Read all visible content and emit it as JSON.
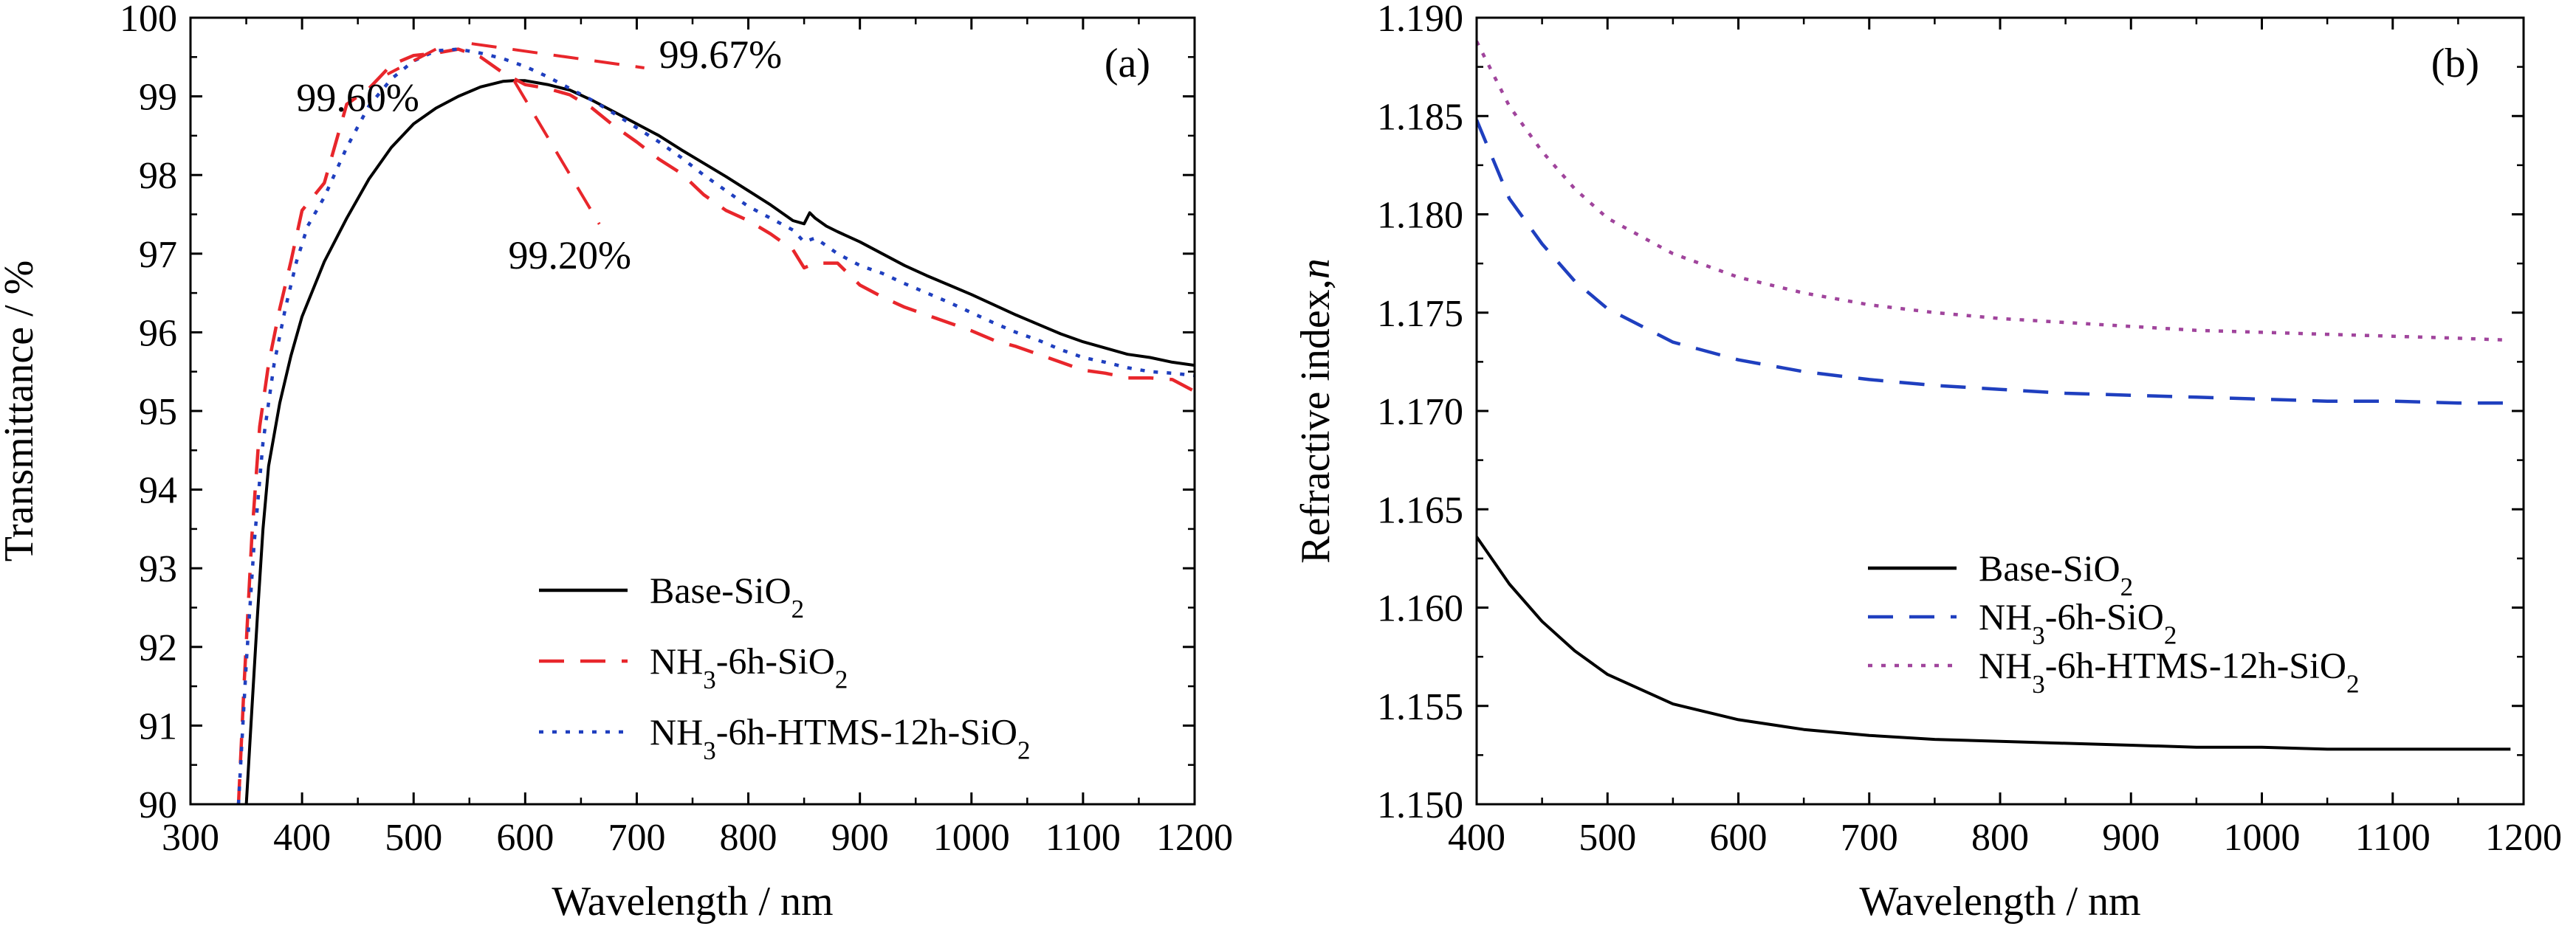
{
  "chart_data": [
    {
      "type": "line",
      "panel_label": "(a)",
      "xlabel": "Wavelength / nm",
      "ylabel": "Transmittance / %",
      "xlim": [
        300,
        1200
      ],
      "ylim": [
        90,
        100
      ],
      "x_ticks": [
        300,
        400,
        500,
        600,
        700,
        800,
        900,
        1000,
        1100,
        1200
      ],
      "y_ticks": [
        90,
        91,
        92,
        93,
        94,
        95,
        96,
        97,
        98,
        99,
        100
      ],
      "legend_position": "bottom-right",
      "series": [
        {
          "name": "Base-SiO2",
          "name_main": "Base-SiO",
          "name_sub": "2",
          "name_tail": "",
          "color": "#000000",
          "style": "solid",
          "points": [
            [
              350,
              90
            ],
            [
              355,
              91.2
            ],
            [
              360,
              92.4
            ],
            [
              365,
              93.5
            ],
            [
              370,
              94.3
            ],
            [
              380,
              95.1
            ],
            [
              390,
              95.7
            ],
            [
              400,
              96.2
            ],
            [
              420,
              96.9
            ],
            [
              440,
              97.45
            ],
            [
              460,
              97.95
            ],
            [
              480,
              98.35
            ],
            [
              500,
              98.65
            ],
            [
              520,
              98.85
            ],
            [
              540,
              99.0
            ],
            [
              560,
              99.12
            ],
            [
              580,
              99.19
            ],
            [
              590,
              99.2
            ],
            [
              600,
              99.2
            ],
            [
              620,
              99.15
            ],
            [
              640,
              99.08
            ],
            [
              660,
              98.95
            ],
            [
              680,
              98.8
            ],
            [
              700,
              98.65
            ],
            [
              720,
              98.5
            ],
            [
              740,
              98.32
            ],
            [
              760,
              98.15
            ],
            [
              780,
              97.98
            ],
            [
              800,
              97.8
            ],
            [
              820,
              97.62
            ],
            [
              840,
              97.42
            ],
            [
              850,
              97.38
            ],
            [
              855,
              97.52
            ],
            [
              860,
              97.45
            ],
            [
              870,
              97.35
            ],
            [
              880,
              97.28
            ],
            [
              900,
              97.15
            ],
            [
              920,
              97.0
            ],
            [
              940,
              96.85
            ],
            [
              960,
              96.72
            ],
            [
              980,
              96.6
            ],
            [
              1000,
              96.48
            ],
            [
              1020,
              96.35
            ],
            [
              1040,
              96.22
            ],
            [
              1060,
              96.1
            ],
            [
              1080,
              95.98
            ],
            [
              1100,
              95.88
            ],
            [
              1120,
              95.8
            ],
            [
              1140,
              95.72
            ],
            [
              1160,
              95.68
            ],
            [
              1180,
              95.62
            ],
            [
              1200,
              95.58
            ]
          ]
        },
        {
          "name": "NH3-6h-SiO2",
          "name_main": "NH",
          "name_sub": "3",
          "name_tail": "-6h-SiO",
          "name_sub2": "2",
          "color": "#e8262b",
          "style": "dashed",
          "points": [
            [
              343,
              90
            ],
            [
              348,
              91.5
            ],
            [
              355,
              93.4
            ],
            [
              362,
              94.8
            ],
            [
              370,
              95.6
            ],
            [
              380,
              96.3
            ],
            [
              390,
              96.9
            ],
            [
              400,
              97.55
            ],
            [
              420,
              97.9
            ],
            [
              440,
              98.9
            ],
            [
              460,
              99.1
            ],
            [
              480,
              99.4
            ],
            [
              500,
              99.52
            ],
            [
              520,
              99.55
            ],
            [
              540,
              99.6
            ],
            [
              560,
              99.5
            ],
            [
              580,
              99.3
            ],
            [
              600,
              99.15
            ],
            [
              620,
              99.1
            ],
            [
              640,
              99.02
            ],
            [
              660,
              98.85
            ],
            [
              680,
              98.62
            ],
            [
              700,
              98.42
            ],
            [
              720,
              98.2
            ],
            [
              740,
              98.02
            ],
            [
              760,
              97.75
            ],
            [
              780,
              97.55
            ],
            [
              800,
              97.42
            ],
            [
              820,
              97.25
            ],
            [
              840,
              97.05
            ],
            [
              850,
              96.82
            ],
            [
              860,
              96.88
            ],
            [
              880,
              96.88
            ],
            [
              900,
              96.6
            ],
            [
              920,
              96.45
            ],
            [
              940,
              96.32
            ],
            [
              960,
              96.22
            ],
            [
              980,
              96.12
            ],
            [
              1000,
              96.02
            ],
            [
              1020,
              95.9
            ],
            [
              1040,
              95.82
            ],
            [
              1060,
              95.72
            ],
            [
              1080,
              95.62
            ],
            [
              1100,
              95.52
            ],
            [
              1120,
              95.48
            ],
            [
              1140,
              95.42
            ],
            [
              1160,
              95.42
            ],
            [
              1180,
              95.4
            ],
            [
              1200,
              95.25
            ]
          ]
        },
        {
          "name": "NH3-6h-HTMS-12h-SiO2",
          "name_main": "NH",
          "name_sub": "3",
          "name_tail": "-6h-HTMS-12h-SiO",
          "name_sub2": "2",
          "color": "#1f3fbf",
          "style": "dotted",
          "points": [
            [
              343,
              90
            ],
            [
              350,
              91.8
            ],
            [
              357,
              93.3
            ],
            [
              365,
              94.6
            ],
            [
              375,
              95.6
            ],
            [
              385,
              96.3
            ],
            [
              395,
              96.9
            ],
            [
              405,
              97.35
            ],
            [
              420,
              97.72
            ],
            [
              440,
              98.35
            ],
            [
              460,
              98.88
            ],
            [
              480,
              99.22
            ],
            [
              500,
              99.45
            ],
            [
              520,
              99.58
            ],
            [
              540,
              99.6
            ],
            [
              560,
              99.55
            ],
            [
              580,
              99.48
            ],
            [
              600,
              99.38
            ],
            [
              620,
              99.25
            ],
            [
              640,
              99.1
            ],
            [
              660,
              98.95
            ],
            [
              680,
              98.78
            ],
            [
              700,
              98.6
            ],
            [
              720,
              98.42
            ],
            [
              740,
              98.22
            ],
            [
              760,
              98.0
            ],
            [
              780,
              97.8
            ],
            [
              800,
              97.6
            ],
            [
              820,
              97.45
            ],
            [
              840,
              97.3
            ],
            [
              850,
              97.15
            ],
            [
              860,
              97.2
            ],
            [
              880,
              97.0
            ],
            [
              900,
              96.85
            ],
            [
              920,
              96.75
            ],
            [
              940,
              96.62
            ],
            [
              960,
              96.5
            ],
            [
              980,
              96.38
            ],
            [
              1000,
              96.25
            ],
            [
              1020,
              96.12
            ],
            [
              1040,
              96.0
            ],
            [
              1060,
              95.9
            ],
            [
              1080,
              95.78
            ],
            [
              1100,
              95.68
            ],
            [
              1120,
              95.62
            ],
            [
              1140,
              95.55
            ],
            [
              1160,
              95.5
            ],
            [
              1180,
              95.48
            ],
            [
              1200,
              95.45
            ]
          ]
        }
      ],
      "annotations": [
        {
          "text": "99.60%",
          "x": 450,
          "y": 99.0,
          "target": [
            520,
            99.6
          ]
        },
        {
          "text": "99.67%",
          "x": 720,
          "y": 99.55,
          "target": [
            552,
            99.67
          ]
        },
        {
          "text": "99.20%",
          "x": 640,
          "y": 97.0,
          "target": [
            590,
            99.2
          ]
        }
      ]
    },
    {
      "type": "line",
      "panel_label": "(b)",
      "xlabel": "Wavelength / nm",
      "ylabel_main": "Refractive index,",
      "ylabel_italic": "n",
      "xlim": [
        400,
        1200
      ],
      "ylim": [
        1.15,
        1.19
      ],
      "x_ticks": [
        400,
        500,
        600,
        700,
        800,
        900,
        1000,
        1100,
        1200
      ],
      "y_ticks": [
        "1.150",
        "1.155",
        "1.160",
        "1.165",
        "1.170",
        "1.175",
        "1.180",
        "1.185",
        "1.190"
      ],
      "legend_position": "center-right",
      "series": [
        {
          "name": "Base-SiO2",
          "name_main": "Base-SiO",
          "name_sub": "2",
          "name_tail": "",
          "color": "#000000",
          "style": "solid",
          "points": [
            [
              400,
              1.1636
            ],
            [
              425,
              1.1612
            ],
            [
              450,
              1.1593
            ],
            [
              475,
              1.1578
            ],
            [
              500,
              1.1566
            ],
            [
              550,
              1.1551
            ],
            [
              600,
              1.1543
            ],
            [
              650,
              1.1538
            ],
            [
              700,
              1.1535
            ],
            [
              750,
              1.1533
            ],
            [
              800,
              1.1532
            ],
            [
              850,
              1.1531
            ],
            [
              900,
              1.153
            ],
            [
              950,
              1.1529
            ],
            [
              1000,
              1.1529
            ],
            [
              1050,
              1.1528
            ],
            [
              1100,
              1.1528
            ],
            [
              1150,
              1.1528
            ],
            [
              1190,
              1.1528
            ]
          ]
        },
        {
          "name": "NH3-6h-SiO2",
          "name_main": "NH",
          "name_sub": "3",
          "name_tail": "-6h-SiO",
          "name_sub2": "2",
          "color": "#1f3fbf",
          "style": "dashed",
          "points": [
            [
              400,
              1.1848
            ],
            [
              425,
              1.1808
            ],
            [
              450,
              1.1785
            ],
            [
              475,
              1.1766
            ],
            [
              500,
              1.1752
            ],
            [
              550,
              1.1735
            ],
            [
              600,
              1.1726
            ],
            [
              650,
              1.172
            ],
            [
              700,
              1.1716
            ],
            [
              750,
              1.1713
            ],
            [
              800,
              1.1711
            ],
            [
              850,
              1.1709
            ],
            [
              900,
              1.1708
            ],
            [
              950,
              1.1707
            ],
            [
              1000,
              1.1706
            ],
            [
              1050,
              1.1705
            ],
            [
              1100,
              1.1705
            ],
            [
              1150,
              1.1704
            ],
            [
              1190,
              1.1704
            ]
          ]
        },
        {
          "name": "NH3-6h-HTMS-12h-SiO2",
          "name_main": "NH",
          "name_sub": "3",
          "name_tail": "-6h-HTMS-12h-SiO",
          "name_sub2": "2",
          "color": "#a0449c",
          "style": "dotted",
          "points": [
            [
              400,
              1.1888
            ],
            [
              425,
              1.1855
            ],
            [
              450,
              1.1832
            ],
            [
              475,
              1.1813
            ],
            [
              500,
              1.1798
            ],
            [
              550,
              1.178
            ],
            [
              600,
              1.1768
            ],
            [
              650,
              1.176
            ],
            [
              700,
              1.1754
            ],
            [
              750,
              1.175
            ],
            [
              800,
              1.1747
            ],
            [
              850,
              1.1745
            ],
            [
              900,
              1.1743
            ],
            [
              950,
              1.1741
            ],
            [
              1000,
              1.174
            ],
            [
              1050,
              1.1739
            ],
            [
              1100,
              1.1738
            ],
            [
              1150,
              1.1737
            ],
            [
              1190,
              1.1736
            ]
          ]
        }
      ]
    }
  ]
}
